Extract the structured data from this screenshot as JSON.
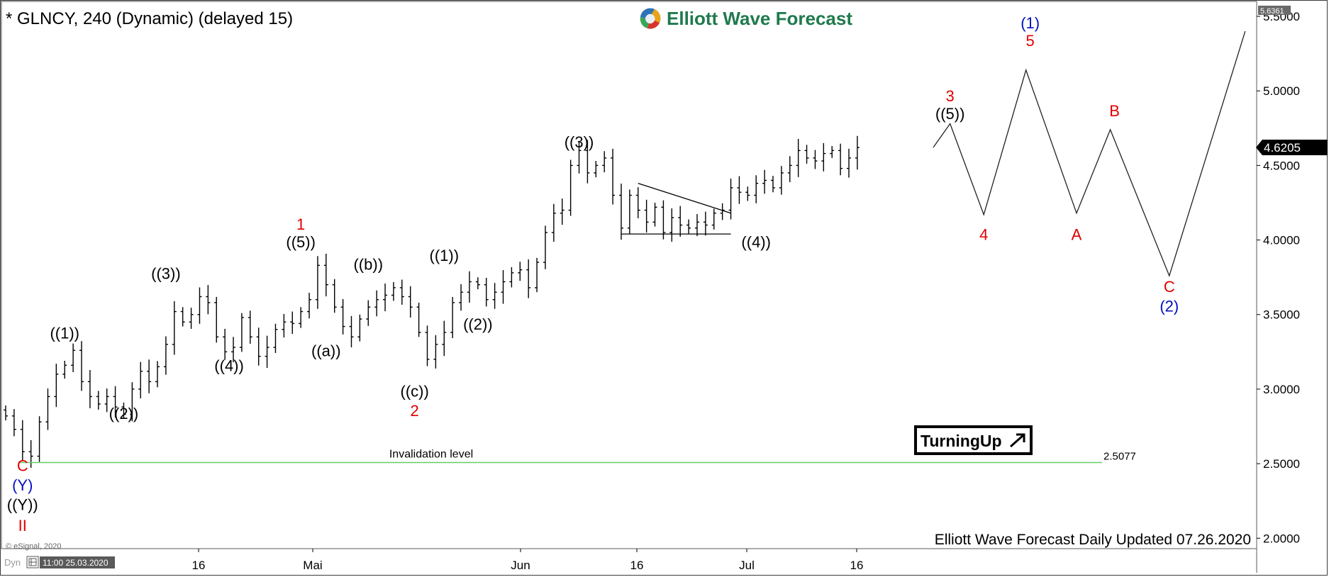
{
  "header": {
    "symbol_title": "* GLNCY, 240 (Dynamic) (delayed 15)",
    "brand": "Elliott Wave Forecast",
    "footer_note": "Elliott Wave Forecast Daily Updated 07.26.2020",
    "copyright": "© eSignal, 2020",
    "corner_tag": "Dyn",
    "cursor_time": "11:00 25.03.2020",
    "turning_up_logo": "TurningUp"
  },
  "colors": {
    "background": "#ffffff",
    "price_bars": "#000000",
    "invalidation_line": "#66cc66",
    "red_labels": "#e00000",
    "blue_labels": "#0010c0",
    "black_labels": "#000000",
    "last_price_bg": "#000000",
    "brand_text": "#1f7a4d"
  },
  "chart_data": {
    "type": "ohlc",
    "instrument": "GLNCY",
    "timeframe": "240",
    "ylim": [
      1.93,
      5.6
    ],
    "y_ticks": [
      "5.5000",
      "5.0000",
      "4.5000",
      "4.0000",
      "3.5000",
      "3.0000",
      "2.5000",
      "2.0000"
    ],
    "y_top_marker": "5.6361",
    "last_price": "4.6205",
    "last_price_value": 4.6205,
    "x_ticks": [
      {
        "label": "16",
        "index": 23
      },
      {
        "label": "Mai",
        "index": 37
      },
      {
        "label": "Jun",
        "index": 61
      },
      {
        "label": "Jul",
        "index": 85
      },
      {
        "label": "16",
        "index": 101
      },
      {
        "label": "16",
        "index": 75
      }
    ],
    "bars_close": [
      2.82,
      2.73,
      2.58,
      2.55,
      2.78,
      2.95,
      3.1,
      3.16,
      3.26,
      3.05,
      2.95,
      2.9,
      2.95,
      2.88,
      2.83,
      3.0,
      3.12,
      3.05,
      3.15,
      3.3,
      3.52,
      3.45,
      3.5,
      3.62,
      3.58,
      3.35,
      3.25,
      3.28,
      3.48,
      3.35,
      3.22,
      3.28,
      3.4,
      3.45,
      3.44,
      3.52,
      3.6,
      3.83,
      3.7,
      3.55,
      3.42,
      3.35,
      3.47,
      3.55,
      3.6,
      3.63,
      3.68,
      3.62,
      3.55,
      3.38,
      3.2,
      3.3,
      3.38,
      3.58,
      3.65,
      3.72,
      3.7,
      3.6,
      3.65,
      3.72,
      3.78,
      3.8,
      3.68,
      3.85,
      4.05,
      4.18,
      4.2,
      4.5,
      4.6,
      4.45,
      4.5,
      4.55,
      4.3,
      4.08,
      4.3,
      4.2,
      4.12,
      4.22,
      4.05,
      4.15,
      4.1,
      4.08,
      4.12,
      4.1,
      4.18,
      4.2,
      4.35,
      4.32,
      4.3,
      4.38,
      4.4,
      4.35,
      4.45,
      4.5,
      4.6,
      4.55,
      4.53,
      4.58,
      4.6,
      4.48,
      4.55,
      4.62
    ],
    "invalidation": {
      "label": "Invalidation level",
      "value": 2.5077,
      "value_label": "2.5077"
    },
    "triangle": {
      "upper": [
        [
          75,
          4.38
        ],
        [
          86,
          4.18
        ]
      ],
      "lower": [
        [
          73,
          4.04
        ],
        [
          86,
          4.04
        ]
      ]
    },
    "projection": [
      {
        "x": 110,
        "y": 4.62
      },
      {
        "x": 112,
        "y": 4.78
      },
      {
        "x": 116,
        "y": 4.17
      },
      {
        "x": 121,
        "y": 5.14
      },
      {
        "x": 127,
        "y": 4.18
      },
      {
        "x": 131,
        "y": 4.74
      },
      {
        "x": 138,
        "y": 3.76
      },
      {
        "x": 147,
        "y": 5.4
      }
    ],
    "wave_labels": [
      {
        "text": "C",
        "x": 2,
        "y": 2.45,
        "color": "red",
        "size": 22
      },
      {
        "text": "(Y)",
        "x": 2,
        "y": 2.32,
        "color": "blue",
        "size": 22
      },
      {
        "text": "((Y))",
        "x": 2,
        "y": 2.19,
        "color": "black",
        "size": 22
      },
      {
        "text": "II",
        "x": 2,
        "y": 2.05,
        "color": "red",
        "size": 22
      },
      {
        "text": "((1))",
        "x": 7,
        "y": 3.34,
        "color": "black",
        "size": 22
      },
      {
        "text": "((2))",
        "x": 14,
        "y": 2.8,
        "color": "black",
        "size": 22
      },
      {
        "text": "((3))",
        "x": 19,
        "y": 3.74,
        "color": "black",
        "size": 22
      },
      {
        "text": "((4))",
        "x": 26.5,
        "y": 3.12,
        "color": "black",
        "size": 22
      },
      {
        "text": "1",
        "x": 35,
        "y": 4.07,
        "color": "red",
        "size": 22
      },
      {
        "text": "((5))",
        "x": 35,
        "y": 3.95,
        "color": "black",
        "size": 22
      },
      {
        "text": "((a))",
        "x": 38,
        "y": 3.22,
        "color": "black",
        "size": 22
      },
      {
        "text": "((b))",
        "x": 43,
        "y": 3.8,
        "color": "black",
        "size": 22
      },
      {
        "text": "((c))",
        "x": 48.5,
        "y": 2.95,
        "color": "black",
        "size": 22
      },
      {
        "text": "2",
        "x": 48.5,
        "y": 2.82,
        "color": "red",
        "size": 22
      },
      {
        "text": "((1))",
        "x": 52,
        "y": 3.86,
        "color": "black",
        "size": 22
      },
      {
        "text": "((2))",
        "x": 56,
        "y": 3.4,
        "color": "black",
        "size": 22
      },
      {
        "text": "((3))",
        "x": 68,
        "y": 4.62,
        "color": "black",
        "size": 22
      },
      {
        "text": "((4))",
        "x": 89,
        "y": 3.95,
        "color": "black",
        "size": 22
      },
      {
        "text": "3",
        "x": 112,
        "y": 4.93,
        "color": "red",
        "size": 22
      },
      {
        "text": "((5))",
        "x": 112,
        "y": 4.81,
        "color": "black",
        "size": 22
      },
      {
        "text": "4",
        "x": 116,
        "y": 4.0,
        "color": "red",
        "size": 22
      },
      {
        "text": "(1)",
        "x": 121.5,
        "y": 5.42,
        "color": "blue",
        "size": 22
      },
      {
        "text": "5",
        "x": 121.5,
        "y": 5.3,
        "color": "red",
        "size": 22
      },
      {
        "text": "A",
        "x": 127,
        "y": 4.0,
        "color": "red",
        "size": 22
      },
      {
        "text": "B",
        "x": 131.5,
        "y": 4.83,
        "color": "red",
        "size": 22
      },
      {
        "text": "C",
        "x": 138,
        "y": 3.65,
        "color": "red",
        "size": 22
      },
      {
        "text": "(2)",
        "x": 138,
        "y": 3.52,
        "color": "blue",
        "size": 22
      }
    ]
  }
}
